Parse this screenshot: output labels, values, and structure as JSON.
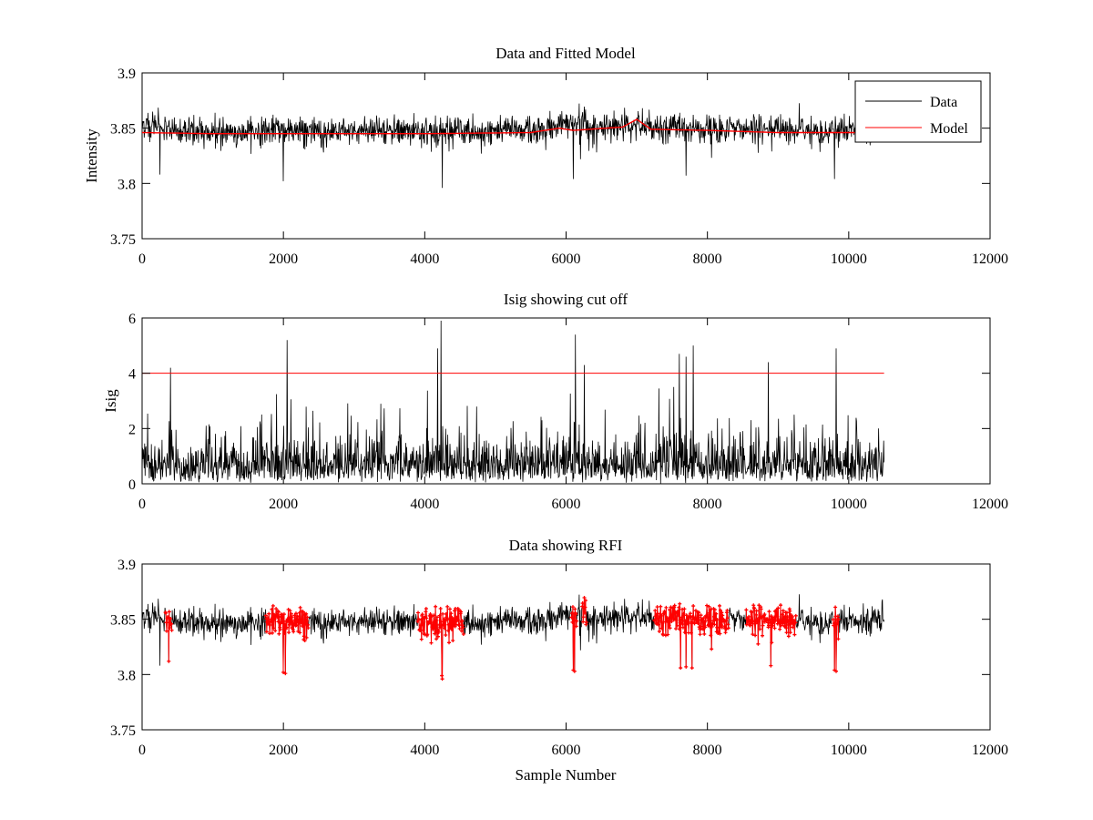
{
  "colors": {
    "data": "#000000",
    "model": "#ff0000",
    "background": "#ffffff"
  },
  "chart_data": [
    {
      "type": "line",
      "title": "Data and Fitted Model",
      "xlabel": "",
      "ylabel": "Intensity",
      "xlim": [
        0,
        12000
      ],
      "ylim": [
        3.75,
        3.9
      ],
      "xticks": [
        "0",
        "2000",
        "4000",
        "6000",
        "8000",
        "10000",
        "12000"
      ],
      "yticks": [
        "3.75",
        "3.8",
        "3.85",
        "3.9"
      ],
      "legend": {
        "position": "top-right",
        "entries": [
          "Data",
          "Model"
        ]
      },
      "n_samples": 10500,
      "series": [
        {
          "name": "Data",
          "kind": "noisy",
          "baseline_x": [
            0,
            1000,
            2000,
            4000,
            5500,
            5900,
            7000,
            7500,
            8000,
            10000,
            10500
          ],
          "baseline_y": [
            3.854,
            3.846,
            3.848,
            3.847,
            3.848,
            3.852,
            3.852,
            3.851,
            3.85,
            3.848,
            3.851
          ],
          "noise_sd": 0.006,
          "dips": [
            {
              "x": 250,
              "y": 3.808
            },
            {
              "x": 2000,
              "y": 3.802
            },
            {
              "x": 4250,
              "y": 3.796
            },
            {
              "x": 6100,
              "y": 3.804
            },
            {
              "x": 7700,
              "y": 3.807
            },
            {
              "x": 9800,
              "y": 3.804
            }
          ]
        },
        {
          "name": "Model",
          "kind": "smooth",
          "x": [
            0,
            1000,
            2000,
            4000,
            5500,
            5900,
            6100,
            6800,
            7000,
            7200,
            8000,
            9000,
            10500
          ],
          "y": [
            3.846,
            3.845,
            3.845,
            3.845,
            3.846,
            3.85,
            3.848,
            3.851,
            3.858,
            3.849,
            3.848,
            3.846,
            3.846
          ]
        }
      ]
    },
    {
      "type": "line",
      "title": "Isig showing cut off",
      "xlabel": "",
      "ylabel": "Isig",
      "xlim": [
        0,
        12000
      ],
      "ylim": [
        0,
        6
      ],
      "xticks": [
        "0",
        "2000",
        "4000",
        "6000",
        "8000",
        "10000",
        "12000"
      ],
      "yticks": [
        "0",
        "2",
        "4",
        "6"
      ],
      "n_samples": 10500,
      "cutoff": {
        "value": 4,
        "x_start": 0,
        "x_end": 10500
      },
      "spikes": [
        {
          "x": 400,
          "y": 4.2
        },
        {
          "x": 2050,
          "y": 5.2
        },
        {
          "x": 4180,
          "y": 4.9
        },
        {
          "x": 4230,
          "y": 5.9
        },
        {
          "x": 6130,
          "y": 5.4
        },
        {
          "x": 6260,
          "y": 4.3
        },
        {
          "x": 7600,
          "y": 4.7
        },
        {
          "x": 7700,
          "y": 4.6
        },
        {
          "x": 7800,
          "y": 5.0
        },
        {
          "x": 8860,
          "y": 4.4
        },
        {
          "x": 9820,
          "y": 4.9
        }
      ]
    },
    {
      "type": "line",
      "title": "Data showing RFI",
      "xlabel": "Sample Number",
      "ylabel": "",
      "xlim": [
        0,
        12000
      ],
      "ylim": [
        3.75,
        3.9
      ],
      "xticks": [
        "0",
        "2000",
        "4000",
        "6000",
        "8000",
        "10000",
        "12000"
      ],
      "yticks": [
        "3.75",
        "3.8",
        "3.85",
        "3.9"
      ],
      "n_samples": 10500,
      "rfi_regions": [
        {
          "x0": 330,
          "x1": 420
        },
        {
          "x0": 1750,
          "x1": 2350
        },
        {
          "x0": 3900,
          "x1": 4550
        },
        {
          "x0": 6080,
          "x1": 6150
        },
        {
          "x0": 6230,
          "x1": 6290
        },
        {
          "x0": 7250,
          "x1": 8300
        },
        {
          "x0": 8550,
          "x1": 9250
        },
        {
          "x0": 9780,
          "x1": 9860
        }
      ],
      "rfi_dips": [
        {
          "x": 380,
          "y": 3.812
        },
        {
          "x": 2030,
          "y": 3.801
        },
        {
          "x": 4240,
          "y": 3.799
        },
        {
          "x": 6120,
          "y": 3.803
        },
        {
          "x": 7620,
          "y": 3.806
        },
        {
          "x": 7780,
          "y": 3.806
        },
        {
          "x": 8900,
          "y": 3.808
        },
        {
          "x": 9820,
          "y": 3.803
        }
      ]
    }
  ]
}
